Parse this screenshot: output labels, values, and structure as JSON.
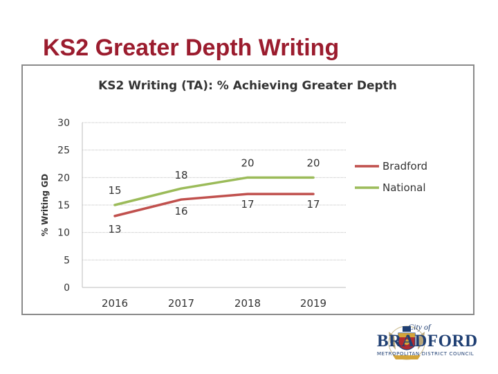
{
  "slide": {
    "title": "KS2 Greater Depth Writing"
  },
  "chart_data": {
    "type": "line",
    "title": "KS2 Writing (TA): % Achieving Greater Depth",
    "xlabel": "",
    "ylabel": "% Writing GD",
    "categories": [
      "2016",
      "2017",
      "2018",
      "2019"
    ],
    "ylim": [
      0,
      30
    ],
    "yticks": [
      0,
      5,
      10,
      15,
      20,
      25,
      30
    ],
    "grid": true,
    "legend_position": "right",
    "series": [
      {
        "name": "Bradford",
        "values": [
          13,
          16,
          17,
          17
        ],
        "color": "#c0504d"
      },
      {
        "name": "National",
        "values": [
          15,
          18,
          20,
          20
        ],
        "color": "#9bbb59"
      }
    ]
  },
  "logo": {
    "city_of": "City of",
    "name": "BRADFORD",
    "council": "METROPOLITAN DISTRICT COUNCIL",
    "colors": {
      "navy": "#1f3f73",
      "red": "#b02a30",
      "gold": "#d4a53a"
    }
  }
}
